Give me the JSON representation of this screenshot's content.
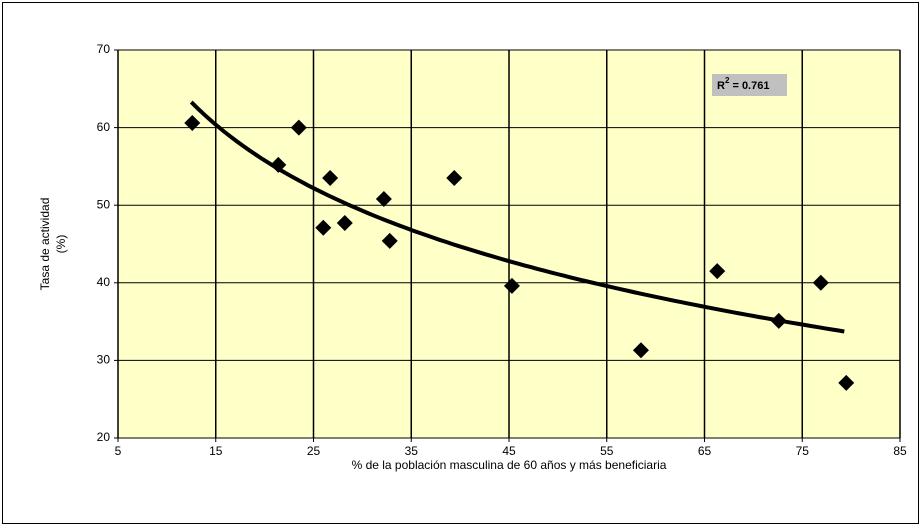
{
  "chart_data": {
    "type": "scatter",
    "xlabel": "% de la población masculina de 60 años y más beneficiaria",
    "ylabel": [
      "Tasa de actividad",
      "(%)"
    ],
    "x": [
      12.6,
      21.4,
      23.5,
      26.7,
      26.0,
      28.2,
      32.2,
      32.8,
      39.4,
      45.3,
      58.5,
      66.3,
      72.6,
      76.9,
      79.5
    ],
    "values": [
      60.6,
      55.2,
      60.0,
      53.5,
      47.1,
      47.7,
      50.8,
      45.4,
      53.5,
      39.6,
      31.3,
      41.5,
      35.1,
      40.0,
      27.1
    ],
    "color": "#000000",
    "xlim": [
      5,
      85
    ],
    "xticks": [
      5,
      15,
      25,
      35,
      45,
      55,
      65,
      75,
      85
    ],
    "ylim": [
      20,
      70
    ],
    "yticks": [
      20,
      30,
      40,
      50,
      60,
      70
    ],
    "grid": true,
    "plot_background": "#ffffc8",
    "trendline": {
      "type": "log",
      "coef": -16.0,
      "intercept": 103.7,
      "xrange": [
        12.5,
        79.3
      ],
      "color": "#000000"
    },
    "annotation": {
      "base": "R",
      "sup": "2",
      "text": " = 0.761"
    }
  }
}
